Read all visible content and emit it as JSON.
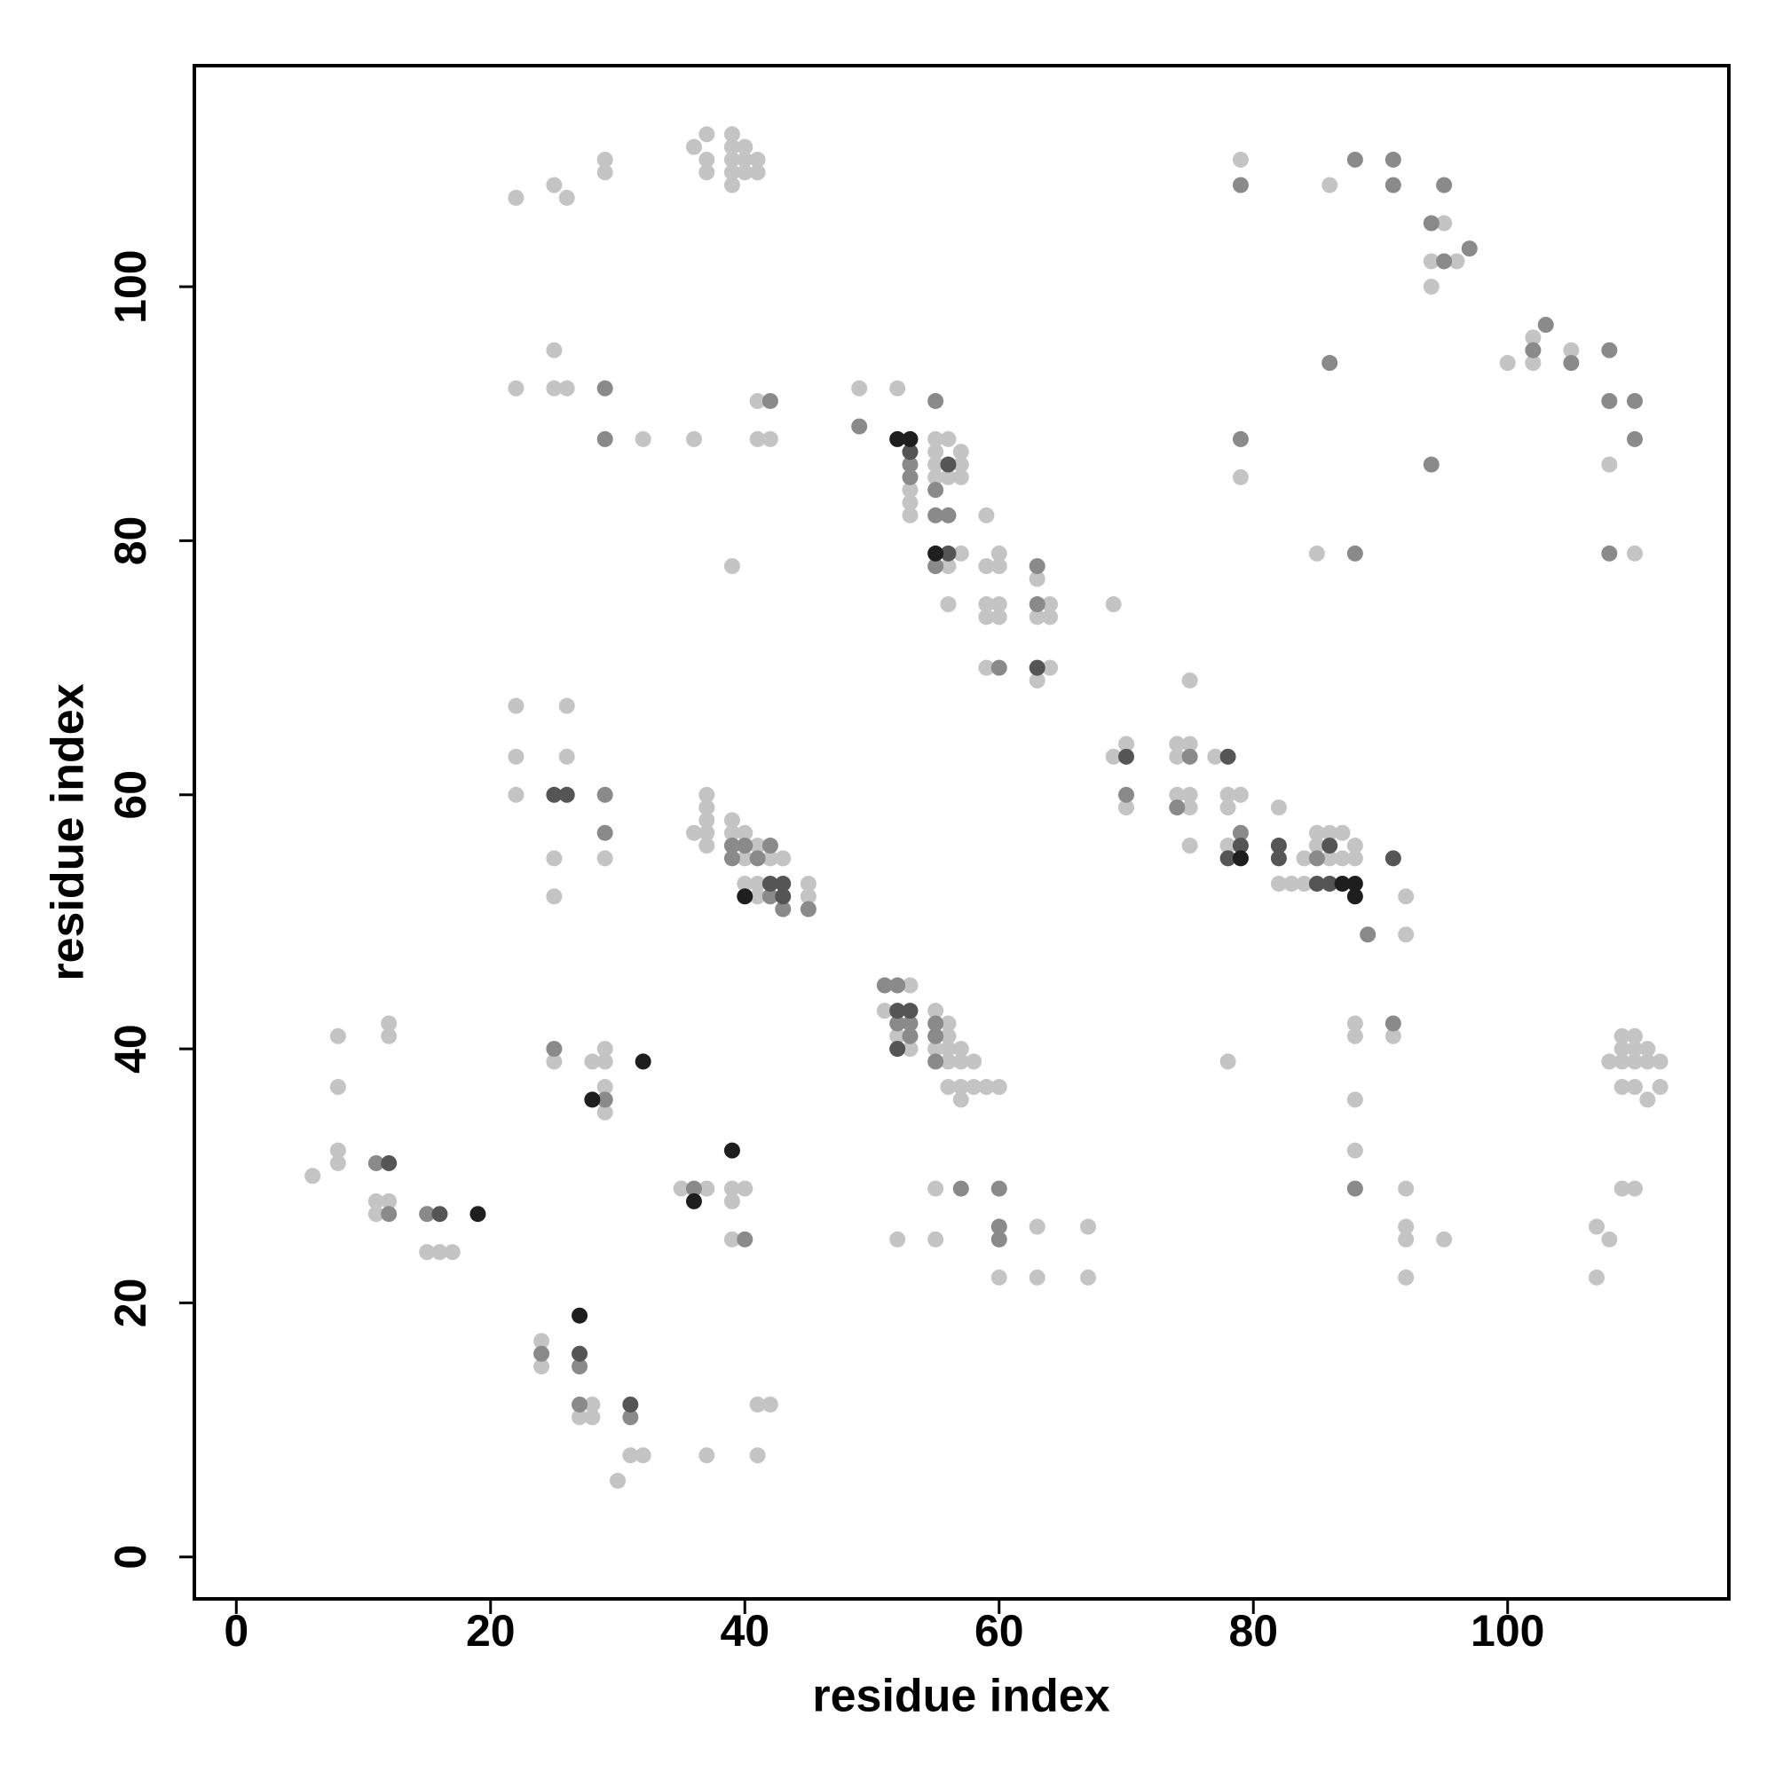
{
  "chart_data": {
    "type": "scatter",
    "xlabel": "residue index",
    "ylabel": "residue index",
    "xlim": [
      -3.3,
      117.4
    ],
    "ylim": [
      -3.3,
      117.4
    ],
    "xticks": [
      0,
      20,
      40,
      60,
      80,
      100
    ],
    "yticks": [
      0,
      20,
      40,
      60,
      80,
      100
    ],
    "series": [
      {
        "color": "#c4c4c4",
        "x": [
          22,
          25,
          26,
          29,
          29,
          36,
          37,
          37,
          37,
          39,
          39,
          39,
          39,
          39,
          40,
          40,
          40,
          41,
          41,
          22,
          25,
          25,
          26,
          32,
          36,
          41,
          41,
          42,
          39,
          49,
          52,
          53,
          53,
          53,
          55,
          55,
          55,
          55,
          56,
          56,
          56,
          56,
          57,
          57,
          57,
          57,
          59,
          59,
          59,
          59,
          59,
          60,
          60,
          60,
          60,
          63,
          63,
          63,
          64,
          64,
          64,
          69,
          69,
          70,
          70,
          74,
          74,
          74,
          75,
          75,
          75,
          75,
          75,
          77,
          78,
          78,
          78,
          79,
          82,
          82,
          83,
          84,
          84,
          85,
          85,
          86,
          86,
          87,
          87,
          88,
          88,
          92,
          92,
          22,
          22,
          22,
          25,
          25,
          26,
          26,
          29,
          36,
          37,
          37,
          37,
          37,
          37,
          39,
          39,
          40,
          40,
          40,
          41,
          41,
          41,
          42,
          43,
          45,
          45,
          79,
          86,
          95,
          94,
          96,
          94,
          100,
          102,
          102,
          105,
          108,
          110,
          79,
          85,
          51,
          52,
          53,
          53,
          55,
          55,
          56,
          56,
          56,
          56,
          56,
          57,
          57,
          57,
          57,
          58,
          58,
          59,
          60,
          52,
          55,
          55,
          60,
          63,
          63,
          67,
          67,
          78,
          88,
          88,
          88,
          88,
          91,
          92,
          92,
          92,
          92,
          95,
          107,
          107,
          108,
          108,
          109,
          109,
          109,
          109,
          109,
          110,
          110,
          110,
          110,
          110,
          111,
          111,
          111,
          112,
          112,
          6,
          8,
          8,
          8,
          8,
          11,
          11,
          12,
          12,
          12,
          15,
          16,
          17,
          25,
          28,
          29,
          29,
          29,
          29,
          35,
          37,
          39,
          39,
          39,
          40,
          24,
          24,
          27,
          28,
          28,
          30,
          31,
          32,
          37,
          41,
          41,
          42
        ],
        "y": [
          107,
          108,
          107,
          110,
          109,
          111,
          112,
          110,
          109,
          112,
          111,
          110,
          109,
          108,
          111,
          110,
          109,
          110,
          109,
          92,
          95,
          92,
          92,
          88,
          88,
          91,
          88,
          88,
          78,
          92,
          92,
          84,
          83,
          82,
          88,
          87,
          86,
          85,
          88,
          85,
          78,
          75,
          87,
          86,
          85,
          79,
          82,
          78,
          75,
          74,
          70,
          79,
          78,
          75,
          74,
          77,
          74,
          69,
          75,
          74,
          70,
          75,
          63,
          64,
          59,
          64,
          63,
          60,
          64,
          60,
          59,
          56,
          69,
          63,
          60,
          59,
          56,
          60,
          59,
          53,
          53,
          55,
          53,
          57,
          56,
          57,
          55,
          57,
          55,
          56,
          55,
          52,
          49,
          67,
          63,
          60,
          55,
          52,
          67,
          63,
          55,
          57,
          60,
          59,
          58,
          57,
          56,
          58,
          57,
          57,
          55,
          53,
          56,
          53,
          52,
          55,
          55,
          53,
          52,
          110,
          108,
          105,
          102,
          102,
          100,
          94,
          96,
          94,
          95,
          86,
          79,
          85,
          79,
          43,
          41,
          45,
          40,
          43,
          40,
          42,
          41,
          40,
          39,
          37,
          40,
          39,
          37,
          36,
          39,
          37,
          37,
          37,
          25,
          29,
          25,
          22,
          26,
          22,
          26,
          22,
          39,
          42,
          41,
          36,
          32,
          41,
          29,
          26,
          25,
          22,
          25,
          26,
          22,
          25,
          39,
          41,
          40,
          39,
          37,
          29,
          41,
          40,
          39,
          37,
          29,
          40,
          39,
          36,
          39,
          37,
          30,
          41,
          37,
          32,
          31,
          28,
          27,
          42,
          41,
          28,
          24,
          24,
          24,
          39,
          39,
          40,
          39,
          37,
          35,
          29,
          29,
          29,
          28,
          25,
          29,
          17,
          15,
          11,
          12,
          11,
          6,
          8,
          8,
          8,
          12,
          8,
          12
        ]
      },
      {
        "color": "#8a8a8a",
        "x": [
          29,
          29,
          42,
          49,
          53,
          53,
          55,
          55,
          55,
          55,
          56,
          60,
          63,
          63,
          70,
          74,
          75,
          79,
          85,
          89,
          29,
          29,
          39,
          39,
          40,
          41,
          42,
          42,
          43,
          45,
          79,
          88,
          91,
          91,
          94,
          95,
          95,
          97,
          102,
          103,
          105,
          108,
          108,
          108,
          110,
          110,
          86,
          94,
          79,
          88,
          51,
          52,
          52,
          53,
          53,
          55,
          55,
          55,
          57,
          60,
          60,
          60,
          88,
          91,
          11,
          12,
          15,
          25,
          29,
          36,
          40,
          24,
          27,
          27,
          31
        ],
        "y": [
          92,
          88,
          91,
          89,
          86,
          85,
          91,
          84,
          82,
          78,
          82,
          70,
          78,
          75,
          60,
          59,
          63,
          57,
          55,
          49,
          60,
          57,
          56,
          55,
          56,
          55,
          56,
          52,
          51,
          51,
          108,
          110,
          110,
          108,
          105,
          108,
          102,
          103,
          95,
          97,
          94,
          95,
          91,
          79,
          91,
          88,
          94,
          86,
          88,
          79,
          45,
          45,
          42,
          42,
          41,
          42,
          41,
          39,
          29,
          29,
          26,
          25,
          29,
          42,
          31,
          27,
          27,
          40,
          36,
          29,
          25,
          16,
          15,
          12,
          11
        ]
      },
      {
        "color": "#555555",
        "x": [
          53,
          56,
          56,
          63,
          70,
          78,
          78,
          79,
          82,
          82,
          85,
          86,
          86,
          91,
          25,
          26,
          42,
          43,
          43,
          52,
          52,
          53,
          12,
          16,
          27,
          31
        ],
        "y": [
          87,
          86,
          79,
          70,
          63,
          63,
          55,
          56,
          56,
          55,
          53,
          56,
          53,
          55,
          60,
          60,
          53,
          53,
          52,
          43,
          40,
          43,
          31,
          27,
          16,
          12
        ]
      },
      {
        "color": "#1e1e1e",
        "x": [
          52,
          53,
          55,
          79,
          87,
          88,
          88,
          40,
          19,
          28,
          32,
          36,
          39,
          27
        ],
        "y": [
          88,
          88,
          79,
          55,
          53,
          53,
          52,
          52,
          27,
          36,
          39,
          28,
          32,
          19
        ]
      }
    ]
  }
}
